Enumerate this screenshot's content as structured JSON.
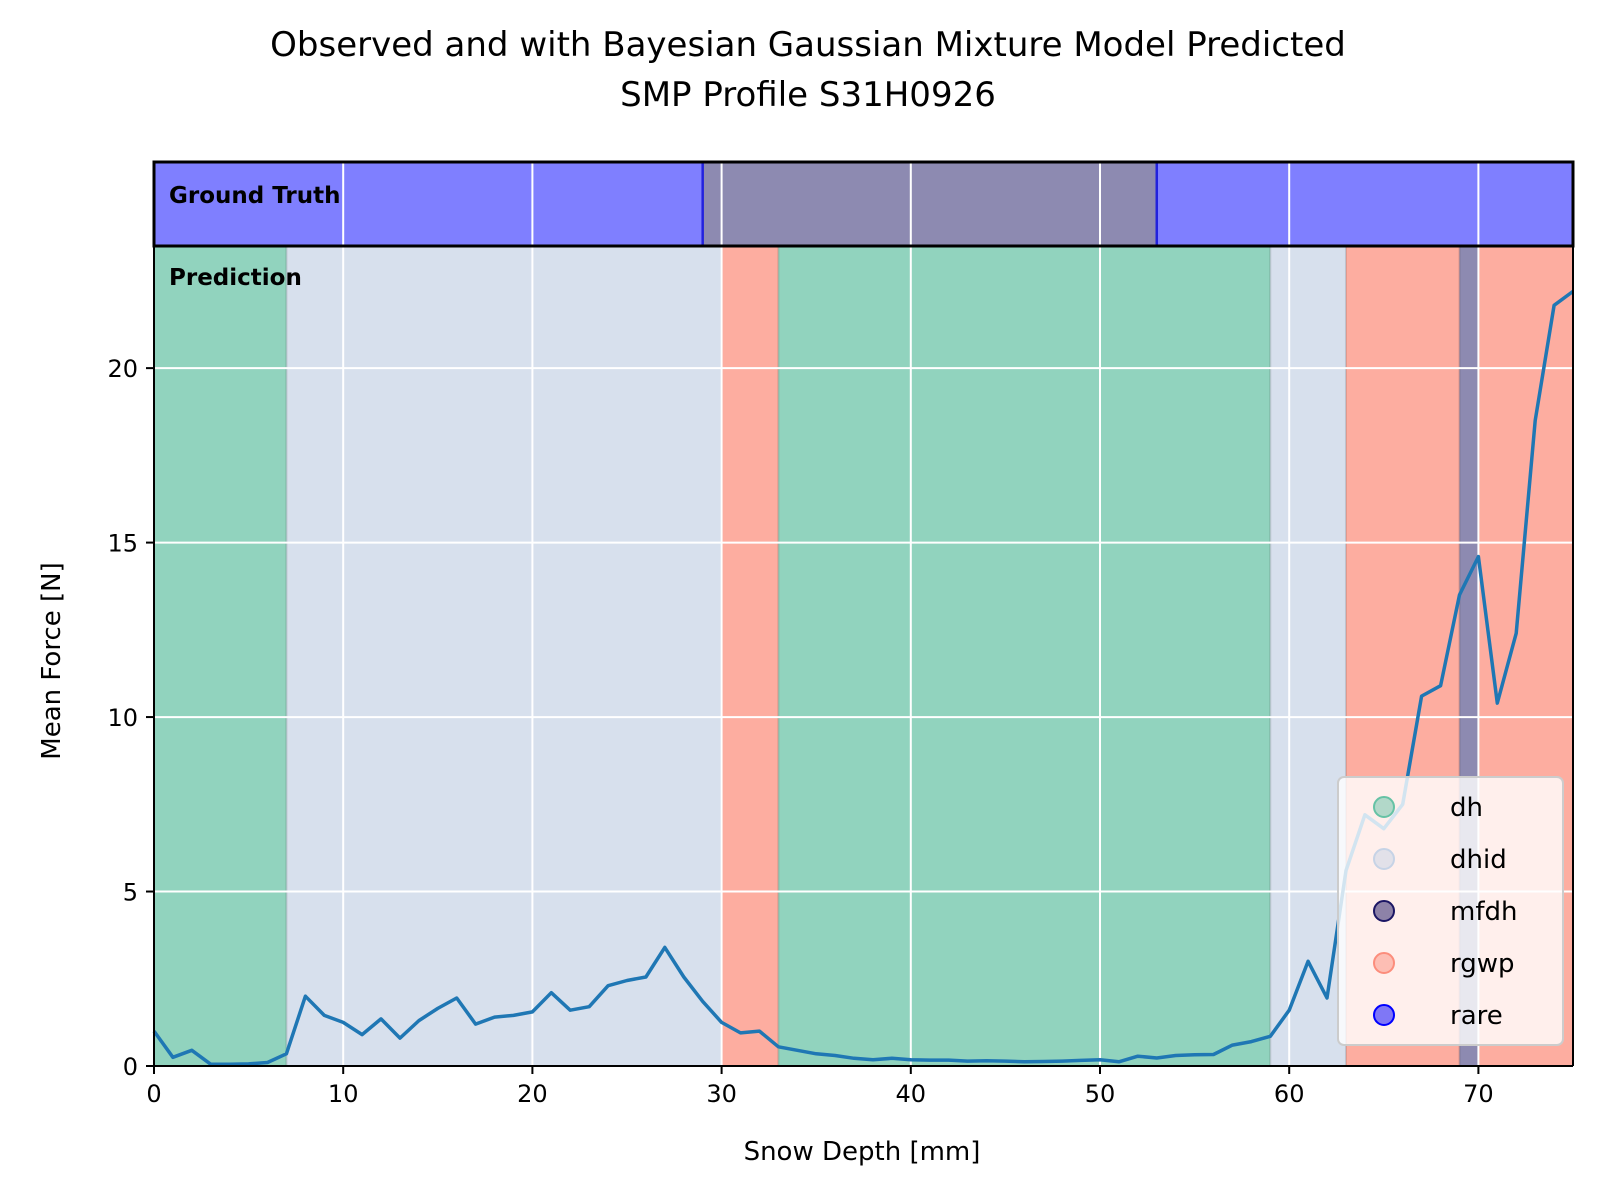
{
  "chart_data": {
    "type": "line",
    "title": "Observed and with Bayesian Gaussian Mixture Model Predicted",
    "subtitle": "SMP Profile S31H0926",
    "xlabel": "Snow Depth [mm]",
    "ylabel": "Mean Force [N]",
    "xlim": [
      0,
      75
    ],
    "ylim": [
      0,
      23.5
    ],
    "x_ticks": [
      0,
      10,
      20,
      30,
      40,
      50,
      60,
      70
    ],
    "y_ticks": [
      0,
      5,
      10,
      15,
      20
    ],
    "grid": true,
    "legend_position": "lower-right",
    "ground_truth_label": "Ground Truth",
    "prediction_label": "Prediction",
    "classes": [
      {
        "name": "dh",
        "color": "#66c2a5"
      },
      {
        "name": "dhid",
        "color": "#c6d3e6"
      },
      {
        "name": "mfdh",
        "color": "#1b1664"
      },
      {
        "name": "rgwp",
        "color": "#fc8d7c"
      },
      {
        "name": "rare",
        "color": "#0000ff"
      }
    ],
    "ground_truth_segments": [
      {
        "start": 0,
        "end": 29,
        "class": "rare"
      },
      {
        "start": 29,
        "end": 53,
        "class": "mfdh"
      },
      {
        "start": 53,
        "end": 75,
        "class": "rare"
      }
    ],
    "prediction_segments": [
      {
        "start": 0,
        "end": 7,
        "class": "dh"
      },
      {
        "start": 7,
        "end": 30,
        "class": "dhid"
      },
      {
        "start": 30,
        "end": 33,
        "class": "rgwp"
      },
      {
        "start": 33,
        "end": 59,
        "class": "dh"
      },
      {
        "start": 59,
        "end": 63,
        "class": "dhid"
      },
      {
        "start": 63,
        "end": 69,
        "class": "rgwp"
      },
      {
        "start": 69,
        "end": 70,
        "class": "mfdh"
      },
      {
        "start": 70,
        "end": 75,
        "class": "rgwp"
      }
    ],
    "series": [
      {
        "color": "#1f77b4",
        "x": [
          0,
          1,
          2,
          3,
          4,
          5,
          6,
          7,
          8,
          9,
          10,
          11,
          12,
          13,
          14,
          15,
          16,
          17,
          18,
          19,
          20,
          21,
          22,
          23,
          24,
          25,
          26,
          27,
          28,
          29,
          30,
          31,
          32,
          33,
          34,
          35,
          36,
          37,
          38,
          39,
          40,
          41,
          42,
          43,
          44,
          45,
          46,
          47,
          48,
          49,
          50,
          51,
          52,
          53,
          54,
          55,
          56,
          57,
          58,
          59,
          60,
          61,
          62,
          63,
          64,
          65,
          66,
          67,
          68,
          69,
          70,
          71,
          72,
          73,
          74,
          75
        ],
        "y": [
          1.0,
          0.25,
          0.45,
          0.05,
          0.05,
          0.06,
          0.1,
          0.35,
          2.0,
          1.45,
          1.25,
          0.9,
          1.35,
          0.8,
          1.3,
          1.65,
          1.95,
          1.2,
          1.4,
          1.45,
          1.55,
          2.1,
          1.6,
          1.7,
          2.3,
          2.45,
          2.55,
          3.4,
          2.55,
          1.85,
          1.25,
          0.95,
          1.0,
          0.55,
          0.45,
          0.35,
          0.3,
          0.22,
          0.18,
          0.22,
          0.18,
          0.17,
          0.17,
          0.14,
          0.15,
          0.14,
          0.12,
          0.13,
          0.14,
          0.16,
          0.18,
          0.12,
          0.28,
          0.23,
          0.3,
          0.32,
          0.33,
          0.6,
          0.7,
          0.85,
          1.6,
          3.0,
          1.95,
          5.6,
          7.2,
          6.8,
          7.5,
          10.6,
          10.9,
          13.5,
          14.6,
          10.4,
          12.4,
          18.5,
          21.8,
          22.2
        ]
      }
    ]
  }
}
